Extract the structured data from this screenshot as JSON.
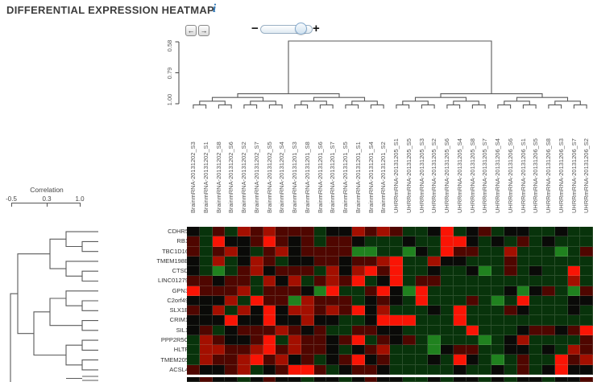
{
  "header": {
    "title": "DIFFERENTIAL EXPRESSION HEATMAP",
    "info_icon": "i"
  },
  "toolbar": {
    "pan_left_label": "←",
    "pan_right_label": "→",
    "zoom_out_label": "−",
    "zoom_in_label": "+",
    "zoom_slider_percent": 77
  },
  "col_axis": {
    "ticks": [
      "0.58",
      "0.79",
      "1.00"
    ]
  },
  "legend": {
    "title": "Correlation",
    "ticks": [
      "-0.5",
      "0.3",
      "1.0"
    ]
  },
  "chart_data": {
    "type": "heatmap",
    "title": "DIFFERENTIAL EXPRESSION HEATMAP",
    "legend_scale": {
      "label": "Correlation",
      "min": -0.5,
      "mid": 0.3,
      "max": 1.0
    },
    "column_dendrogram_axis_ticks": [
      0.58,
      0.79,
      1.0
    ],
    "columns": [
      "BrainmRNA-20131202_S3",
      "BrainmRNA-20131202_S1",
      "BrainmRNA-20131202_S8",
      "BrainmRNA-20131202_S6",
      "BrainmRNA-20131202_S2",
      "BrainmRNA-20131202_S7",
      "BrainmRNA-20131202_S5",
      "BrainmRNA-20131202_S4",
      "BrainmRNA-20131201_S3",
      "BrainmRNA-20131201_S8",
      "BrainmRNA-20131201_S6",
      "BrainmRNA-20131201_S7",
      "BrainmRNA-20131201_S5",
      "BrainmRNA-20131201_S1",
      "BrainmRNA-20131201_S4",
      "BrainmRNA-20131201_S2",
      "UHRRmRNA-20131205_S1",
      "UHRRmRNA-20131205_S5",
      "UHRRmRNA-20131205_S3",
      "UHRRmRNA-20131205_S2",
      "UHRRmRNA-20131205_S6",
      "UHRRmRNA-20131205_S4",
      "UHRRmRNA-20131205_S8",
      "UHRRmRNA-20131205_S7",
      "UHRRmRNA-20131206_S4",
      "UHRRmRNA-20131206_S6",
      "UHRRmRNA-20131206_S1",
      "UHRRmRNA-20131206_S5",
      "UHRRmRNA-20131206_S8",
      "UHRRmRNA-20131206_S3",
      "UHRRmRNA-20131206_S7",
      "UHRRmRNA-20131206_S2"
    ],
    "rows": [
      "CDHR5",
      "RB1",
      "TBC1D16",
      "TMEM198B",
      "CTSD",
      "LINC01279",
      "GPN3",
      "C2orf49",
      "SLX1B",
      "CRIM1",
      "SIL1",
      "PPP2R5C",
      "HLTF",
      "TMEM205",
      "ACSL4"
    ],
    "palette": {
      "K": "#0a0a08",
      "r": "#4f0600",
      "R": "#a30f00",
      "F": "#fa1405",
      "g": "#08330b",
      "G": "#20821f"
    },
    "cells": [
      "KgrgRrRrrrgKKRrRrggKFgKrgKKggKgg",
      "rgFKKrFrKrgrrKgggKggFFKgKgrgKggg",
      "rgrRKgrRKrrrrGGggGKgFrrggRgggGgr",
      "KgRgKRrgKKrrKrrRFggRKKgggrgggggg",
      "KgGgrRKrrrgRKRFrFggKggKGgrgKggFg",
      "rrKrrgRKRgrRrFgKFgrrggggggggggRg",
      "FrrrRgrrrKGFggrFKGFggggggKGKrgGr",
      "KKKRgFrrGRrrrgKrKgFgggrgGgFgggKK",
      "rKRgRKFKRRrRrFKRgggKgFgggrKgggKg",
      "KKKFKKFKKRKKggKFFFgggFgggggggggg",
      "KrgKrrrRrKrggrrKKgggggFgggKrrKrF",
      "gRrKKrFgRrrKrFgrKrgGgggGgKRggggr",
      "gRRrrRFrRrrKgKrRgggGKrrggKKgKgRr",
      "gRrrRFrRKrgKrFKrgggKgFKgGgrggFrR",
      "rKKrRgKrFFrgKrrKgggggKggKgrgKFKK"
    ],
    "partial_row": "KrKKgKrKKgKKgKrKKggKgKKgKgKKgKKr"
  }
}
